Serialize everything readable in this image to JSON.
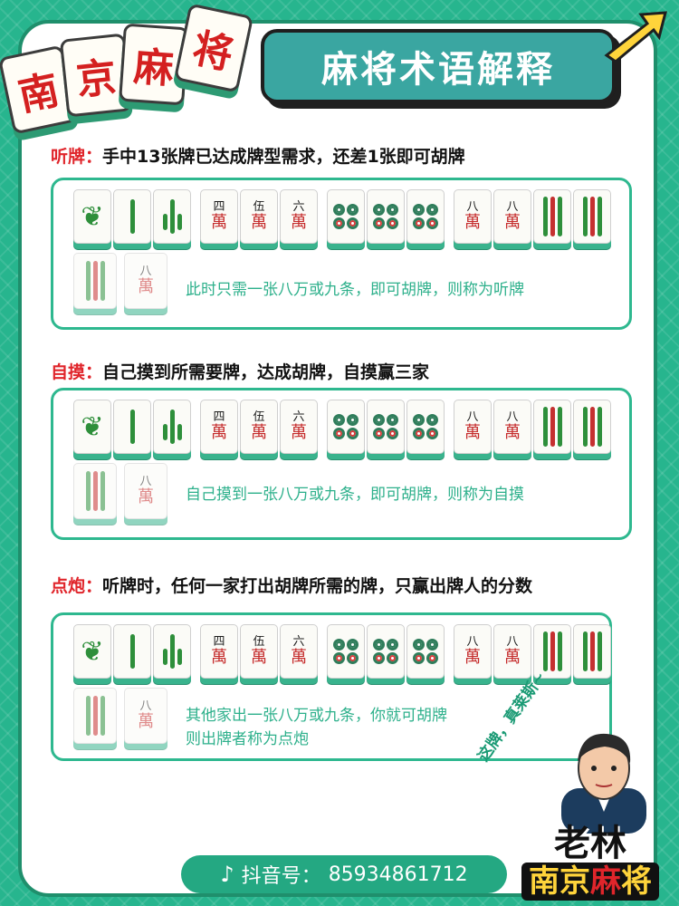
{
  "logo": {
    "chars": [
      "南",
      "京",
      "麻",
      "将"
    ]
  },
  "title": "麻将术语解释",
  "sections": [
    {
      "term": "听牌：",
      "desc": "手中13张牌已达成牌型需求，还差1张即可胡牌",
      "note_line1": "此时只需一张八万或九条，即可胡牌，则称为听牌",
      "note_line2": ""
    },
    {
      "term": "自摸：",
      "desc": "自己摸到所需要牌，达成胡牌，自摸赢三家",
      "note_line1": "自己摸到一张八万或九条，即可胡牌，则称为自摸",
      "note_line2": ""
    },
    {
      "term": "点炮：",
      "desc": "听牌时，任何一家打出胡牌所需的牌，只赢出牌人的分数",
      "note_line1": "其他家出一张八万或九条，你就可胡牌",
      "note_line2": "则出牌者称为点炮"
    }
  ],
  "tile_chars": {
    "si": "四",
    "wu": "伍",
    "liu": "六",
    "ba": "八",
    "wan": "萬"
  },
  "footer": {
    "label": "抖音号：",
    "id": "85934861712"
  },
  "slogan": "这牌，真莱斯~",
  "brand": {
    "line1": "老林",
    "line2_a": "南京",
    "line2_b": "麻",
    "line2_c": "将"
  },
  "colors": {
    "accent": "#27b58e",
    "term_red": "#e0252b",
    "note_green": "#2db08b",
    "banner": "#3aa6a1"
  }
}
